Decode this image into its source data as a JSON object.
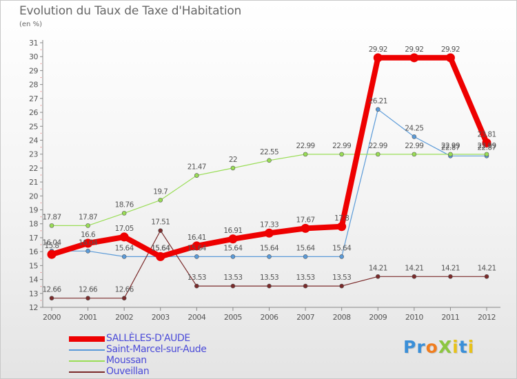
{
  "title": "Evolution du Taux de Taxe d'Habitation",
  "unit_label": "(en %)",
  "logo": {
    "text": "ProXiti",
    "letters": [
      {
        "ch": "P",
        "color": "#3a8fd8"
      },
      {
        "ch": "r",
        "color": "#3a8fd8"
      },
      {
        "ch": "o",
        "color": "#f07d1e"
      },
      {
        "ch": "X",
        "color": "#8cc63f"
      },
      {
        "ch": "i",
        "color": "#e8c21a"
      },
      {
        "ch": "t",
        "color": "#3a8fd8"
      },
      {
        "ch": "i",
        "color": "#e8c21a"
      }
    ]
  },
  "chart_data": {
    "type": "line",
    "title": "Evolution du Taux de Taxe d'Habitation",
    "ylabel": "(en %)",
    "xlabel": "",
    "ylim": [
      12,
      31
    ],
    "yticks": [
      12,
      13,
      14,
      15,
      16,
      17,
      18,
      19,
      20,
      21,
      22,
      23,
      24,
      25,
      26,
      27,
      28,
      29,
      30,
      31
    ],
    "grid": false,
    "legend_position": "bottom-left",
    "x": [
      "2000",
      "2001",
      "2002",
      "2003",
      "2004",
      "2005",
      "2006",
      "2007",
      "2008",
      "2009",
      "2010",
      "2011",
      "2012"
    ],
    "series": [
      {
        "name": "SALLÈLES-D'AUDE",
        "color": "#ee0000",
        "emphasis": true,
        "values": [
          15.8,
          16.6,
          17.05,
          15.64,
          16.41,
          16.91,
          17.33,
          17.67,
          17.8,
          29.92,
          29.92,
          29.92,
          23.81
        ],
        "labels": [
          "15.8",
          "16.6",
          "17.05",
          "15.64",
          "16.41",
          "16.91",
          "17.33",
          "17.67",
          "17.8",
          "29.92",
          "29.92",
          "29.92",
          "23.81"
        ]
      },
      {
        "name": "Saint-Marcel-sur-Aude",
        "color": "#5a9ad8",
        "emphasis": false,
        "values": [
          16.04,
          16.04,
          15.64,
          15.64,
          15.64,
          15.64,
          15.64,
          15.64,
          15.64,
          26.21,
          24.25,
          22.87,
          22.87
        ],
        "labels": [
          "16.04",
          "16.04",
          "15.64",
          "15.64",
          "15.64",
          "15.64",
          "15.64",
          "15.64",
          "15.64",
          "26.21",
          "24.25",
          "22.87",
          "22.87"
        ]
      },
      {
        "name": "Moussan",
        "color": "#99dd55",
        "emphasis": false,
        "values": [
          17.87,
          17.87,
          18.76,
          19.7,
          21.47,
          22,
          22.55,
          22.99,
          22.99,
          22.99,
          22.99,
          22.99,
          22.99
        ],
        "labels": [
          "17.87",
          "17.87",
          "18.76",
          "19.7",
          "21.47",
          "22",
          "22.55",
          "22.99",
          "22.99",
          "22.99",
          "22.99",
          "22.99",
          "22.99"
        ]
      },
      {
        "name": "Ouveillan",
        "color": "#7a2a2a",
        "emphasis": false,
        "values": [
          12.66,
          12.66,
          12.66,
          17.51,
          13.53,
          13.53,
          13.53,
          13.53,
          13.53,
          14.21,
          14.21,
          14.21,
          14.21
        ],
        "labels": [
          "12.66",
          "12.66",
          "12.66",
          "17.51",
          "13.53",
          "13.53",
          "13.53",
          "13.53",
          "13.53",
          "14.21",
          "14.21",
          "14.21",
          "14.21"
        ]
      }
    ]
  }
}
